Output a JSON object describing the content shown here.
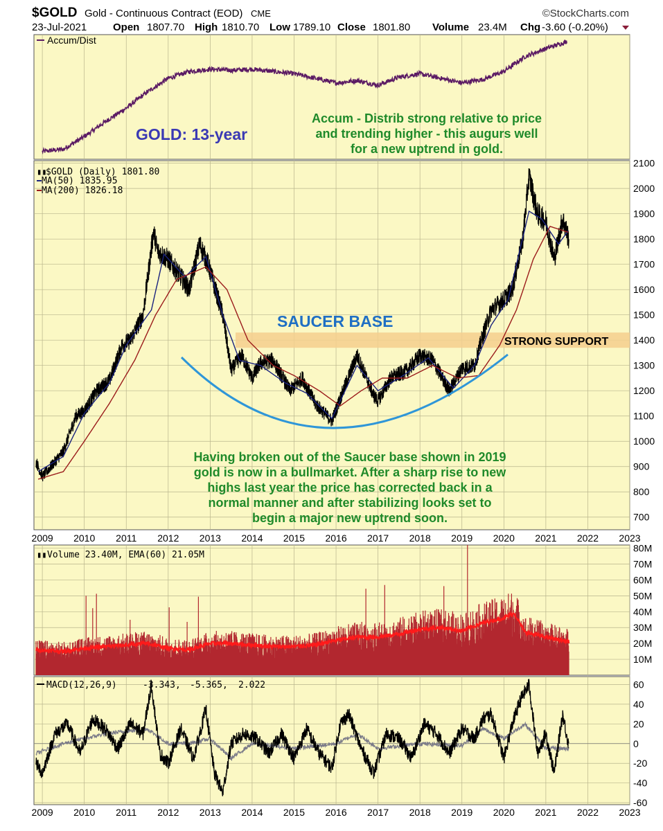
{
  "header": {
    "symbol": "$GOLD",
    "description": "Gold - Continuous Contract (EOD)",
    "exchange": "CME",
    "date": "23-Jul-2021",
    "open_label": "Open",
    "open": "1807.70",
    "high_label": "High",
    "high": "1810.70",
    "low_label": "Low",
    "low": "1789.10",
    "close_label": "Close",
    "close": "1801.80",
    "volume_label": "Volume",
    "volume": "23.4M",
    "chg_label": "Chg",
    "chg": "-3.60 (-0.20%)",
    "source": "©StockCharts.com"
  },
  "colors": {
    "panel_bg": "#fbf8c4",
    "price": "#000000",
    "ma50": "#1a237e",
    "ma200": "#9b1c1c",
    "accum": "#5b1b64",
    "saucer": "#2f96d8",
    "support_band": "#f5cf8e",
    "volume_bar": "#b2272f",
    "volume_ema": "#ff1a1a",
    "annotation_green": "#1f8a2a",
    "annotation_blue": "#1f6fc4",
    "title_blue": "#3b3ab4"
  },
  "chart_data": [
    {
      "panel": "accum_dist",
      "type": "line",
      "legend": "Accum/Dist",
      "series": [
        {
          "name": "Accum/Dist",
          "x": [
            2009.0,
            2009.5,
            2010.0,
            2010.5,
            2011.0,
            2011.5,
            2012.0,
            2012.5,
            2013.0,
            2013.5,
            2014.0,
            2014.5,
            2015.0,
            2015.5,
            2016.0,
            2016.5,
            2017.0,
            2017.5,
            2018.0,
            2018.5,
            2019.0,
            2019.5,
            2020.0,
            2020.5,
            2021.0,
            2021.5
          ],
          "values": [
            2,
            4,
            15,
            28,
            40,
            54,
            66,
            72,
            74,
            73,
            74,
            72,
            70,
            66,
            62,
            64,
            60,
            67,
            70,
            66,
            62,
            65,
            72,
            85,
            92,
            98
          ]
        }
      ],
      "annotations": [
        {
          "text": "GOLD: 13-year",
          "color": "title_blue"
        },
        {
          "lines": [
            "Accum - Distrib strong relative to price",
            "and trending higher - this augurs well",
            "for a new uptrend in gold."
          ],
          "color": "annotation_green"
        }
      ]
    },
    {
      "panel": "price",
      "type": "line",
      "legend": [
        "$GOLD (Daily) 1801.80",
        "MA(50) 1835.95",
        "MA(200) 1826.18"
      ],
      "y_ticks": [
        700,
        800,
        900,
        1000,
        1100,
        1200,
        1300,
        1400,
        1500,
        1600,
        1700,
        1800,
        1900,
        2000,
        2100
      ],
      "ylim": [
        650,
        2110
      ],
      "x_ticks": [
        "2009",
        "2010",
        "2011",
        "2012",
        "2013",
        "2014",
        "2015",
        "2016",
        "2017",
        "2018",
        "2019",
        "2020",
        "2021",
        "2022",
        "2023"
      ],
      "xlim": [
        2008.8,
        2023.0
      ],
      "series": [
        {
          "name": "$GOLD",
          "x": [
            2008.85,
            2009.0,
            2009.2,
            2009.5,
            2009.8,
            2010.0,
            2010.3,
            2010.6,
            2010.9,
            2011.1,
            2011.4,
            2011.65,
            2011.75,
            2012.0,
            2012.3,
            2012.5,
            2012.75,
            2012.95,
            2013.3,
            2013.5,
            2013.75,
            2014.0,
            2014.2,
            2014.5,
            2014.9,
            2015.2,
            2015.5,
            2015.9,
            2016.1,
            2016.5,
            2016.9,
            2017.0,
            2017.3,
            2017.7,
            2018.0,
            2018.3,
            2018.7,
            2019.0,
            2019.3,
            2019.5,
            2019.7,
            2020.0,
            2020.2,
            2020.45,
            2020.6,
            2020.8,
            2021.0,
            2021.2,
            2021.4,
            2021.55
          ],
          "values": [
            920,
            860,
            900,
            960,
            1100,
            1120,
            1200,
            1240,
            1380,
            1400,
            1500,
            1830,
            1750,
            1720,
            1650,
            1600,
            1780,
            1700,
            1500,
            1280,
            1340,
            1250,
            1310,
            1320,
            1200,
            1250,
            1150,
            1080,
            1170,
            1340,
            1180,
            1160,
            1250,
            1280,
            1340,
            1320,
            1200,
            1290,
            1300,
            1420,
            1520,
            1560,
            1600,
            1800,
            2050,
            1900,
            1870,
            1720,
            1880,
            1800
          ]
        },
        {
          "name": "MA(50)",
          "x": [
            2008.9,
            2009.5,
            2010.0,
            2010.6,
            2011.0,
            2011.6,
            2011.9,
            2012.4,
            2012.9,
            2013.3,
            2013.7,
            2014.2,
            2014.8,
            2015.3,
            2015.9,
            2016.5,
            2017.0,
            2017.6,
            2018.2,
            2018.8,
            2019.3,
            2019.7,
            2020.1,
            2020.6,
            2020.9,
            2021.3,
            2021.55
          ],
          "values": [
            880,
            940,
            1110,
            1230,
            1380,
            1520,
            1740,
            1650,
            1730,
            1500,
            1320,
            1300,
            1230,
            1190,
            1090,
            1300,
            1200,
            1260,
            1330,
            1210,
            1300,
            1460,
            1560,
            1910,
            1880,
            1780,
            1836
          ]
        },
        {
          "name": "MA(200)",
          "x": [
            2008.9,
            2009.5,
            2010.0,
            2010.6,
            2011.2,
            2011.7,
            2012.2,
            2012.9,
            2013.4,
            2013.9,
            2014.5,
            2015.0,
            2015.6,
            2016.1,
            2016.6,
            2017.1,
            2017.7,
            2018.3,
            2018.9,
            2019.4,
            2019.9,
            2020.3,
            2020.7,
            2021.1,
            2021.55
          ],
          "values": [
            850,
            880,
            1000,
            1150,
            1320,
            1500,
            1640,
            1690,
            1600,
            1400,
            1300,
            1260,
            1200,
            1140,
            1200,
            1250,
            1250,
            1300,
            1250,
            1260,
            1380,
            1520,
            1720,
            1850,
            1826
          ]
        }
      ],
      "annotations": [
        {
          "text": "SAUCER BASE",
          "color": "annotation_blue"
        },
        {
          "text": "STRONG SUPPORT",
          "level": 1400
        },
        {
          "lines": [
            "Having broken out of the Saucer base shown in 2019",
            "gold is now in a bullmarket. After a sharp rise to new",
            "highs last year the price has corrected back in a",
            "normal manner and after stabilizing looks set to",
            "begin a major new uptrend soon."
          ],
          "color": "annotation_green"
        }
      ]
    },
    {
      "panel": "volume",
      "type": "bar",
      "legend": "Volume 23.40M, EMA(60) 21.05M",
      "y_ticks": [
        "10M",
        "20M",
        "30M",
        "40M",
        "50M",
        "60M",
        "70M",
        "80M"
      ],
      "y_tick_values": [
        10,
        20,
        30,
        40,
        50,
        60,
        70,
        80
      ],
      "ylim": [
        0,
        82
      ],
      "series": [
        {
          "name": "Volume EMA(60)",
          "x": [
            2008.85,
            2009.5,
            2010.0,
            2010.5,
            2011.0,
            2011.5,
            2012.0,
            2012.5,
            2013.0,
            2013.5,
            2014.0,
            2014.5,
            2015.0,
            2015.5,
            2016.0,
            2016.5,
            2017.0,
            2017.5,
            2018.0,
            2018.5,
            2019.0,
            2019.5,
            2020.0,
            2020.25,
            2020.5,
            2021.0,
            2021.55
          ],
          "values": [
            16,
            15,
            17,
            18,
            19,
            20,
            17,
            16,
            20,
            20,
            19,
            18,
            18,
            19,
            22,
            24,
            24,
            26,
            29,
            30,
            28,
            33,
            36,
            39,
            27,
            24,
            21
          ]
        }
      ]
    },
    {
      "panel": "macd",
      "type": "line",
      "legend": [
        "MACD(12,26,9)",
        "-3.343,",
        "-5.365,",
        "2.022"
      ],
      "y_ticks": [
        -60,
        -40,
        -20,
        0,
        20,
        40,
        60
      ],
      "ylim": [
        -62,
        68
      ],
      "x_ticks": [
        "2009",
        "2010",
        "2011",
        "2012",
        "2013",
        "2014",
        "2015",
        "2016",
        "2017",
        "2018",
        "2019",
        "2020",
        "2021",
        "2022",
        "2023"
      ],
      "series": [
        {
          "name": "MACD",
          "x": [
            2008.85,
            2009.0,
            2009.3,
            2009.6,
            2009.9,
            2010.2,
            2010.5,
            2010.8,
            2011.1,
            2011.4,
            2011.6,
            2011.8,
            2012.0,
            2012.3,
            2012.6,
            2012.9,
            2013.1,
            2013.3,
            2013.5,
            2013.8,
            2014.1,
            2014.4,
            2014.7,
            2015.0,
            2015.3,
            2015.6,
            2015.9,
            2016.1,
            2016.3,
            2016.6,
            2016.9,
            2017.2,
            2017.5,
            2017.8,
            2018.1,
            2018.4,
            2018.7,
            2019.0,
            2019.3,
            2019.5,
            2019.7,
            2020.0,
            2020.2,
            2020.4,
            2020.6,
            2020.8,
            2021.0,
            2021.2,
            2021.4,
            2021.55
          ],
          "values": [
            -20,
            -30,
            10,
            20,
            -10,
            25,
            15,
            -5,
            20,
            10,
            60,
            -10,
            -20,
            15,
            -15,
            35,
            -30,
            -50,
            0,
            10,
            5,
            -10,
            10,
            -15,
            15,
            -10,
            -25,
            20,
            30,
            -5,
            -30,
            10,
            5,
            -15,
            20,
            10,
            -10,
            15,
            5,
            25,
            30,
            -15,
            20,
            45,
            60,
            -10,
            10,
            -30,
            30,
            -3
          ]
        },
        {
          "name": "Signal",
          "x": [
            2008.85,
            2009.5,
            2010.5,
            2011.5,
            2012.0,
            2012.5,
            2013.0,
            2013.5,
            2014.0,
            2015.0,
            2016.0,
            2016.5,
            2017.0,
            2018.0,
            2019.0,
            2019.5,
            2020.0,
            2020.5,
            2021.0,
            2021.55
          ],
          "values": [
            -10,
            0,
            10,
            15,
            0,
            0,
            5,
            -15,
            0,
            -5,
            0,
            10,
            -5,
            0,
            -2,
            15,
            5,
            20,
            -5,
            -5
          ]
        }
      ]
    }
  ]
}
